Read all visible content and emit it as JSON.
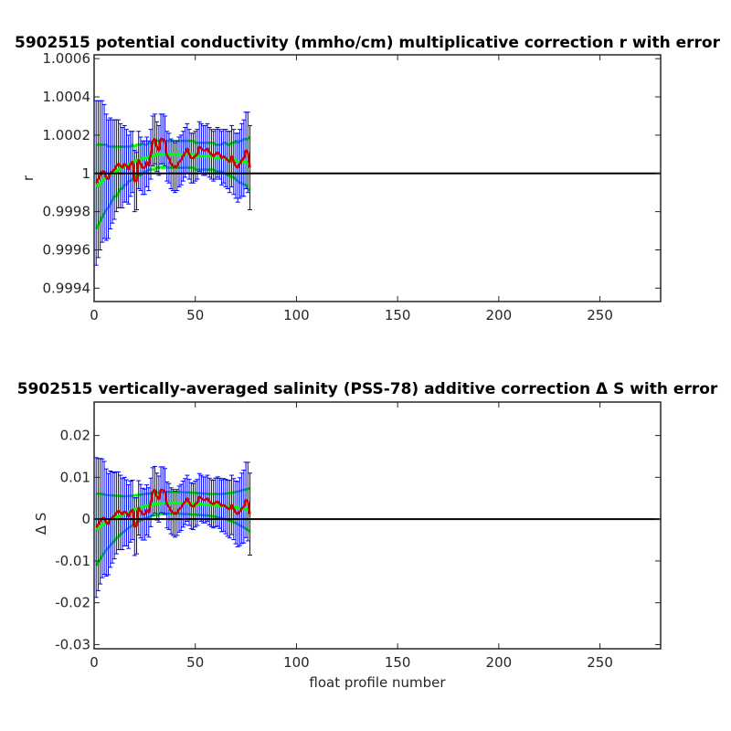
{
  "chart_data": [
    {
      "type": "line",
      "title": "5902515 potential conductivity (mmho/cm) multiplicative correction r with error",
      "xlabel": "",
      "ylabel": "r",
      "xlim": [
        0,
        280
      ],
      "ylim": [
        0.99933,
        1.00062
      ],
      "xticks": [
        0,
        50,
        100,
        150,
        200,
        250
      ],
      "xtick_labels": [
        "0",
        "50",
        "100",
        "150",
        "200",
        "250"
      ],
      "yticks": [
        0.9994,
        0.9996,
        0.9998,
        1,
        1.0002,
        1.0004,
        1.0006
      ],
      "ytick_labels": [
        "0.9994",
        "0.9996",
        "0.9998",
        "1",
        "1.0002",
        "1.0004",
        "1.0006"
      ],
      "reference_line": 1,
      "grid": false,
      "colors": {
        "line": "#d40000",
        "fit": "#00ff00",
        "error": "#0000ff",
        "reference": "#000000"
      },
      "series": [
        {
          "x": [
            1,
            2,
            3,
            4,
            5,
            6,
            7,
            8,
            9,
            10,
            11,
            12,
            13,
            14,
            15,
            16,
            17,
            18,
            19,
            20,
            21,
            22,
            23,
            24,
            25,
            26,
            27,
            28,
            29,
            30,
            31,
            32,
            33,
            34,
            35,
            36,
            37,
            38,
            39,
            40,
            41,
            42,
            43,
            44,
            45,
            46,
            47,
            48,
            49,
            50,
            51,
            52,
            53,
            54,
            55,
            56,
            57,
            58,
            59,
            60,
            61,
            62,
            63,
            64,
            65,
            66,
            67,
            68,
            69,
            70,
            71,
            72,
            73,
            74,
            75,
            76,
            77
          ],
          "y": [
            0.99995,
            0.99997,
            0.99999,
            1.00001,
            1.00001,
            0.99998,
            0.99997,
            1.0,
            1.00001,
            1.00002,
            1.00004,
            1.00005,
            1.00004,
            1.00003,
            1.00005,
            1.00004,
            1.00002,
            1.00005,
            1.00006,
            0.99996,
            0.99996,
            1.00007,
            1.00005,
            1.00003,
            1.00003,
            1.00006,
            1.00004,
            1.0001,
            1.00017,
            1.00018,
            1.00014,
            1.00012,
            1.00018,
            1.00018,
            1.00017,
            1.00009,
            1.00008,
            1.00005,
            1.00004,
            1.00003,
            1.00004,
            1.00006,
            1.00007,
            1.00009,
            1.00011,
            1.00013,
            1.0001,
            1.00008,
            1.00008,
            1.00009,
            1.0001,
            1.00014,
            1.00013,
            1.00012,
            1.00012,
            1.00013,
            1.00011,
            1.0001,
            1.00009,
            1.0001,
            1.00011,
            1.0001,
            1.00008,
            1.00009,
            1.00008,
            1.00007,
            1.00006,
            1.00009,
            1.00006,
            1.00004,
            1.00003,
            1.00005,
            1.00007,
            1.00008,
            1.00012,
            1.00011,
            1.00003
          ],
          "fit_y": [
            0.99993,
            0.99994,
            0.99995,
            0.99996,
            0.99997,
            0.99998,
            0.99998,
            0.99999,
            1.0,
            1.00001,
            1.00001,
            1.00002,
            1.00003,
            1.00003,
            1.00004,
            1.00004,
            1.00005,
            1.00005,
            1.00006,
            1.00006,
            1.00007,
            1.00007,
            1.00007,
            1.00008,
            1.00008,
            1.00008,
            1.00009,
            1.00009,
            1.00009,
            1.00009,
            1.0001,
            1.0001,
            1.0001,
            1.0001,
            1.0001,
            1.0001,
            1.0001,
            1.0001,
            1.0001,
            1.0001,
            1.0001,
            1.0001,
            1.0001,
            1.0001,
            1.0001,
            1.0001,
            1.0001,
            1.0001,
            1.0001,
            1.00009,
            1.00009,
            1.00009,
            1.00009,
            1.00009,
            1.00009,
            1.00009,
            1.00009,
            1.00009,
            1.00009,
            1.00008,
            1.00008,
            1.00008,
            1.00008,
            1.00008,
            1.00008,
            1.00007,
            1.00007,
            1.00007,
            1.00007,
            1.00007,
            1.00006,
            1.00006,
            1.00006,
            1.00006,
            1.00006,
            1.00005,
            1.00005
          ],
          "fit_err": [
            0.00022,
            0.00021,
            0.0002,
            0.00019,
            0.00018,
            0.00017,
            0.00016,
            0.00015,
            0.00014,
            0.00013,
            0.00013,
            0.00012,
            0.00011,
            0.00011,
            0.0001,
            0.0001,
            9e-05,
            9e-05,
            9e-05,
            8e-05,
            8e-05,
            8e-05,
            8e-05,
            8e-05,
            7e-05,
            7e-05,
            7e-05,
            7e-05,
            7e-05,
            7e-05,
            7e-05,
            7e-05,
            7e-05,
            7e-05,
            7e-05,
            7e-05,
            7e-05,
            7e-05,
            7e-05,
            7e-05,
            7e-05,
            7e-05,
            7e-05,
            7e-05,
            7e-05,
            7e-05,
            7e-05,
            7e-05,
            7e-05,
            7e-05,
            7e-05,
            7e-05,
            7e-05,
            7e-05,
            7e-05,
            7e-05,
            7e-05,
            7e-05,
            7e-05,
            7e-05,
            7e-05,
            7e-05,
            7e-05,
            8e-05,
            8e-05,
            8e-05,
            8e-05,
            9e-05,
            9e-05,
            0.0001,
            0.0001,
            0.00011,
            0.00011,
            0.00012,
            0.00012,
            0.00013,
            0.00014
          ],
          "err": [
            0.00043,
            0.00041,
            0.00039,
            0.00037,
            0.00035,
            0.00033,
            0.00031,
            0.00029,
            0.00027,
            0.00026,
            0.00024,
            0.00023,
            0.00022,
            0.00021,
            0.0002,
            0.00019,
            0.00018,
            0.00017,
            0.00016,
            0.00016,
            0.00015,
            0.00015,
            0.00014,
            0.00014,
            0.00014,
            0.00013,
            0.00013,
            0.00013,
            0.00013,
            0.00013,
            0.00013,
            0.00013,
            0.00013,
            0.00013,
            0.00013,
            0.00013,
            0.00013,
            0.00013,
            0.00013,
            0.00013,
            0.00013,
            0.00013,
            0.00013,
            0.00013,
            0.00013,
            0.00013,
            0.00013,
            0.00013,
            0.00013,
            0.00013,
            0.00013,
            0.00013,
            0.00013,
            0.00013,
            0.00013,
            0.00013,
            0.00013,
            0.00013,
            0.00013,
            0.00013,
            0.00013,
            0.00013,
            0.00014,
            0.00014,
            0.00015,
            0.00015,
            0.00016,
            0.00016,
            0.00017,
            0.00017,
            0.00018,
            0.00018,
            0.00019,
            0.0002,
            0.0002,
            0.00021,
            0.00022
          ]
        }
      ]
    },
    {
      "type": "line",
      "title": "5902515 vertically-averaged salinity (PSS-78) additive correction Δ S with error",
      "xlabel": "float profile number",
      "ylabel": "Δ S",
      "xlim": [
        0,
        280
      ],
      "ylim": [
        -0.031,
        0.028
      ],
      "xticks": [
        0,
        50,
        100,
        150,
        200,
        250
      ],
      "xtick_labels": [
        "0",
        "50",
        "100",
        "150",
        "200",
        "250"
      ],
      "yticks": [
        -0.03,
        -0.02,
        -0.01,
        0,
        0.01,
        0.02
      ],
      "ytick_labels": [
        "-0.03",
        "-0.02",
        "-0.01",
        "0",
        "0.01",
        "0.02"
      ],
      "reference_line": 0,
      "grid": false,
      "colors": {
        "line": "#d40000",
        "fit": "#00ff00",
        "error": "#0000ff",
        "reference": "#000000"
      },
      "series": [
        {
          "x": [
            1,
            2,
            3,
            4,
            5,
            6,
            7,
            8,
            9,
            10,
            11,
            12,
            13,
            14,
            15,
            16,
            17,
            18,
            19,
            20,
            21,
            22,
            23,
            24,
            25,
            26,
            27,
            28,
            29,
            30,
            31,
            32,
            33,
            34,
            35,
            36,
            37,
            38,
            39,
            40,
            41,
            42,
            43,
            44,
            45,
            46,
            47,
            48,
            49,
            50,
            51,
            52,
            53,
            54,
            55,
            56,
            57,
            58,
            59,
            60,
            61,
            62,
            63,
            64,
            65,
            66,
            67,
            68,
            69,
            70,
            71,
            72,
            73,
            74,
            75,
            76,
            77
          ],
          "y": [
            -0.002,
            -0.0013,
            -0.0005,
            0.0002,
            0.0003,
            -0.0008,
            -0.0012,
            0.0,
            0.0004,
            0.0008,
            0.0015,
            0.002,
            0.0016,
            0.0012,
            0.0018,
            0.0015,
            0.0006,
            0.0018,
            0.0022,
            -0.0018,
            -0.0016,
            0.0027,
            0.0019,
            0.0012,
            0.0011,
            0.0022,
            0.0016,
            0.004,
            0.0066,
            0.007,
            0.0054,
            0.0048,
            0.007,
            0.007,
            0.0066,
            0.0034,
            0.003,
            0.002,
            0.0016,
            0.0012,
            0.0016,
            0.0024,
            0.0028,
            0.0036,
            0.0042,
            0.005,
            0.004,
            0.0032,
            0.003,
            0.0036,
            0.004,
            0.0054,
            0.005,
            0.0046,
            0.0046,
            0.005,
            0.0042,
            0.0038,
            0.0036,
            0.004,
            0.0042,
            0.0038,
            0.0032,
            0.0034,
            0.003,
            0.0026,
            0.0024,
            0.0034,
            0.0024,
            0.0016,
            0.0012,
            0.0018,
            0.0026,
            0.003,
            0.0046,
            0.0042,
            0.0012
          ],
          "fit_y": [
            -0.0025,
            -0.0021,
            -0.0018,
            -0.0014,
            -0.0011,
            -0.0008,
            -0.0006,
            -0.0003,
            0.0,
            0.0002,
            0.0005,
            0.0007,
            0.0009,
            0.0011,
            0.0013,
            0.0015,
            0.0017,
            0.0019,
            0.0021,
            0.0023,
            0.0025,
            0.0026,
            0.0028,
            0.0029,
            0.0031,
            0.0032,
            0.0033,
            0.0034,
            0.0035,
            0.0036,
            0.0037,
            0.0037,
            0.0038,
            0.0038,
            0.0039,
            0.0039,
            0.0039,
            0.0039,
            0.0039,
            0.0039,
            0.0039,
            0.0039,
            0.0039,
            0.0038,
            0.0038,
            0.0038,
            0.0038,
            0.0037,
            0.0037,
            0.0037,
            0.0036,
            0.0036,
            0.0036,
            0.0035,
            0.0035,
            0.0035,
            0.0034,
            0.0034,
            0.0033,
            0.0033,
            0.0032,
            0.0032,
            0.0031,
            0.0031,
            0.003,
            0.003,
            0.0029,
            0.0029,
            0.0028,
            0.0028,
            0.0027,
            0.0026,
            0.0026,
            0.0025,
            0.0024,
            0.0023,
            0.0022
          ],
          "fit_err": [
            0.0086,
            0.0082,
            0.0078,
            0.0074,
            0.007,
            0.0066,
            0.0063,
            0.006,
            0.0057,
            0.0054,
            0.0051,
            0.0049,
            0.0046,
            0.0044,
            0.0042,
            0.004,
            0.0038,
            0.0037,
            0.0035,
            0.0034,
            0.0033,
            0.0032,
            0.0031,
            0.003,
            0.0029,
            0.0029,
            0.0028,
            0.0028,
            0.0027,
            0.0027,
            0.0027,
            0.0026,
            0.0026,
            0.0026,
            0.0026,
            0.0026,
            0.0026,
            0.0026,
            0.0026,
            0.0026,
            0.0026,
            0.0026,
            0.0026,
            0.0026,
            0.0026,
            0.0026,
            0.0026,
            0.0026,
            0.0026,
            0.0026,
            0.0026,
            0.0026,
            0.0026,
            0.0026,
            0.0026,
            0.0026,
            0.0026,
            0.0026,
            0.0027,
            0.0027,
            0.0028,
            0.0028,
            0.0029,
            0.003,
            0.0031,
            0.0032,
            0.0033,
            0.0034,
            0.0036,
            0.0037,
            0.0039,
            0.0041,
            0.0043,
            0.0045,
            0.0047,
            0.0049,
            0.0052
          ],
          "err": [
            0.0167,
            0.0158,
            0.015,
            0.0142,
            0.0135,
            0.0128,
            0.0121,
            0.0115,
            0.0109,
            0.0103,
            0.0098,
            0.0093,
            0.0089,
            0.0085,
            0.0082,
            0.0079,
            0.0076,
            0.0073,
            0.0071,
            0.0069,
            0.0067,
            0.0065,
            0.0064,
            0.0062,
            0.0061,
            0.006,
            0.0059,
            0.0058,
            0.0057,
            0.0056,
            0.0056,
            0.0055,
            0.0055,
            0.0055,
            0.0055,
            0.0055,
            0.0055,
            0.0055,
            0.0055,
            0.0055,
            0.0055,
            0.0055,
            0.0055,
            0.0055,
            0.0055,
            0.0055,
            0.0055,
            0.0055,
            0.0055,
            0.0055,
            0.0055,
            0.0055,
            0.0055,
            0.0055,
            0.0055,
            0.0055,
            0.0056,
            0.0056,
            0.0057,
            0.0058,
            0.0059,
            0.006,
            0.0062,
            0.0063,
            0.0065,
            0.0067,
            0.0069,
            0.0071,
            0.0073,
            0.0075,
            0.0078,
            0.0081,
            0.0084,
            0.0087,
            0.009,
            0.0094,
            0.0098
          ]
        }
      ]
    }
  ]
}
